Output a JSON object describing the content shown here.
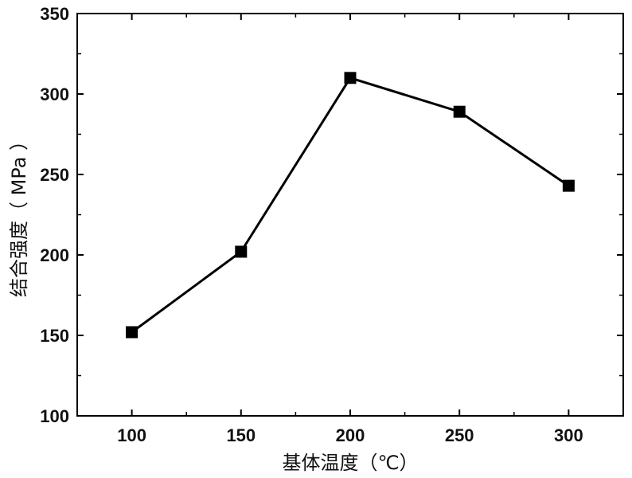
{
  "chart_data": {
    "type": "line",
    "title": "",
    "xlabel": "基体温度（℃）",
    "ylabel": "结合强度（ MPa ）",
    "x": [
      100,
      150,
      200,
      250,
      300
    ],
    "series": [
      {
        "values": [
          152,
          202,
          310,
          289,
          243
        ]
      }
    ],
    "xlim": [
      75,
      325
    ],
    "ylim": [
      100,
      350
    ],
    "xticks": [
      "100",
      "150",
      "200",
      "250",
      "300"
    ],
    "yticks": [
      "100",
      "150",
      "200",
      "250",
      "300",
      "350"
    ],
    "grid": false,
    "legend": "none",
    "marker": "filled-square",
    "line_color": "#000000",
    "marker_color": "#000000"
  }
}
